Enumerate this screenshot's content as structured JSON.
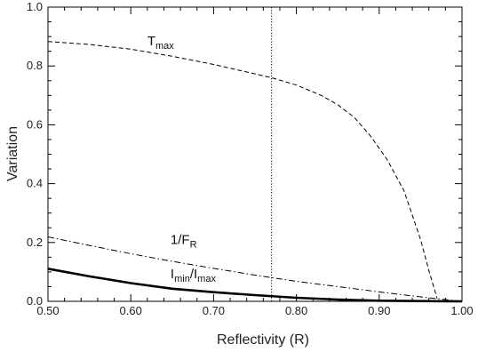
{
  "chart_data": {
    "type": "line",
    "title": "",
    "xlabel": "Reflectivity (R)",
    "ylabel": "Variation",
    "xlim": [
      0.5,
      1.0
    ],
    "ylim": [
      0.0,
      1.0
    ],
    "x_ticks": [
      "0.50",
      "0.60",
      "0.70",
      "0.80",
      "0.90",
      "1.00"
    ],
    "y_ticks": [
      "0.0",
      "0.2",
      "0.4",
      "0.6",
      "0.8",
      "1.0"
    ],
    "grid": false,
    "reference_line": {
      "orientation": "vertical",
      "x": 0.77,
      "style": "dotted"
    },
    "series": [
      {
        "style": "dashed",
        "x": [
          0.5,
          0.55,
          0.6,
          0.65,
          0.7,
          0.75,
          0.77,
          0.8,
          0.83,
          0.85,
          0.87,
          0.89,
          0.91,
          0.93,
          0.95,
          0.96,
          0.97
        ],
        "y": [
          0.883,
          0.873,
          0.857,
          0.833,
          0.805,
          0.773,
          0.76,
          0.735,
          0.7,
          0.668,
          0.625,
          0.56,
          0.48,
          0.375,
          0.21,
          0.105,
          0.01
        ]
      },
      {
        "style": "dashdot",
        "x": [
          0.5,
          0.55,
          0.6,
          0.65,
          0.7,
          0.75,
          0.8,
          0.85,
          0.9,
          0.95,
          0.97,
          1.0
        ],
        "y": [
          0.219,
          0.19,
          0.162,
          0.136,
          0.112,
          0.089,
          0.068,
          0.05,
          0.032,
          0.015,
          0.009,
          0.0
        ]
      },
      {
        "style": "solid-thick",
        "x": [
          0.5,
          0.55,
          0.6,
          0.65,
          0.7,
          0.75,
          0.8,
          0.85,
          0.9,
          0.95,
          1.0
        ],
        "y": [
          0.111,
          0.085,
          0.062,
          0.043,
          0.031,
          0.021,
          0.012,
          0.006,
          0.002,
          0.001,
          0.0
        ]
      }
    ],
    "annotations": [
      {
        "id": "tmax",
        "base": "T",
        "sub": "max",
        "x": 0.62,
        "y": 0.87
      },
      {
        "id": "inv-fr",
        "base": "1/F",
        "sub": "R",
        "x": 0.648,
        "y": 0.195
      },
      {
        "id": "imin-imax",
        "base": "I",
        "sub": "min",
        "base2": "/I",
        "sub2": "max",
        "x": 0.648,
        "y": 0.078
      }
    ]
  }
}
